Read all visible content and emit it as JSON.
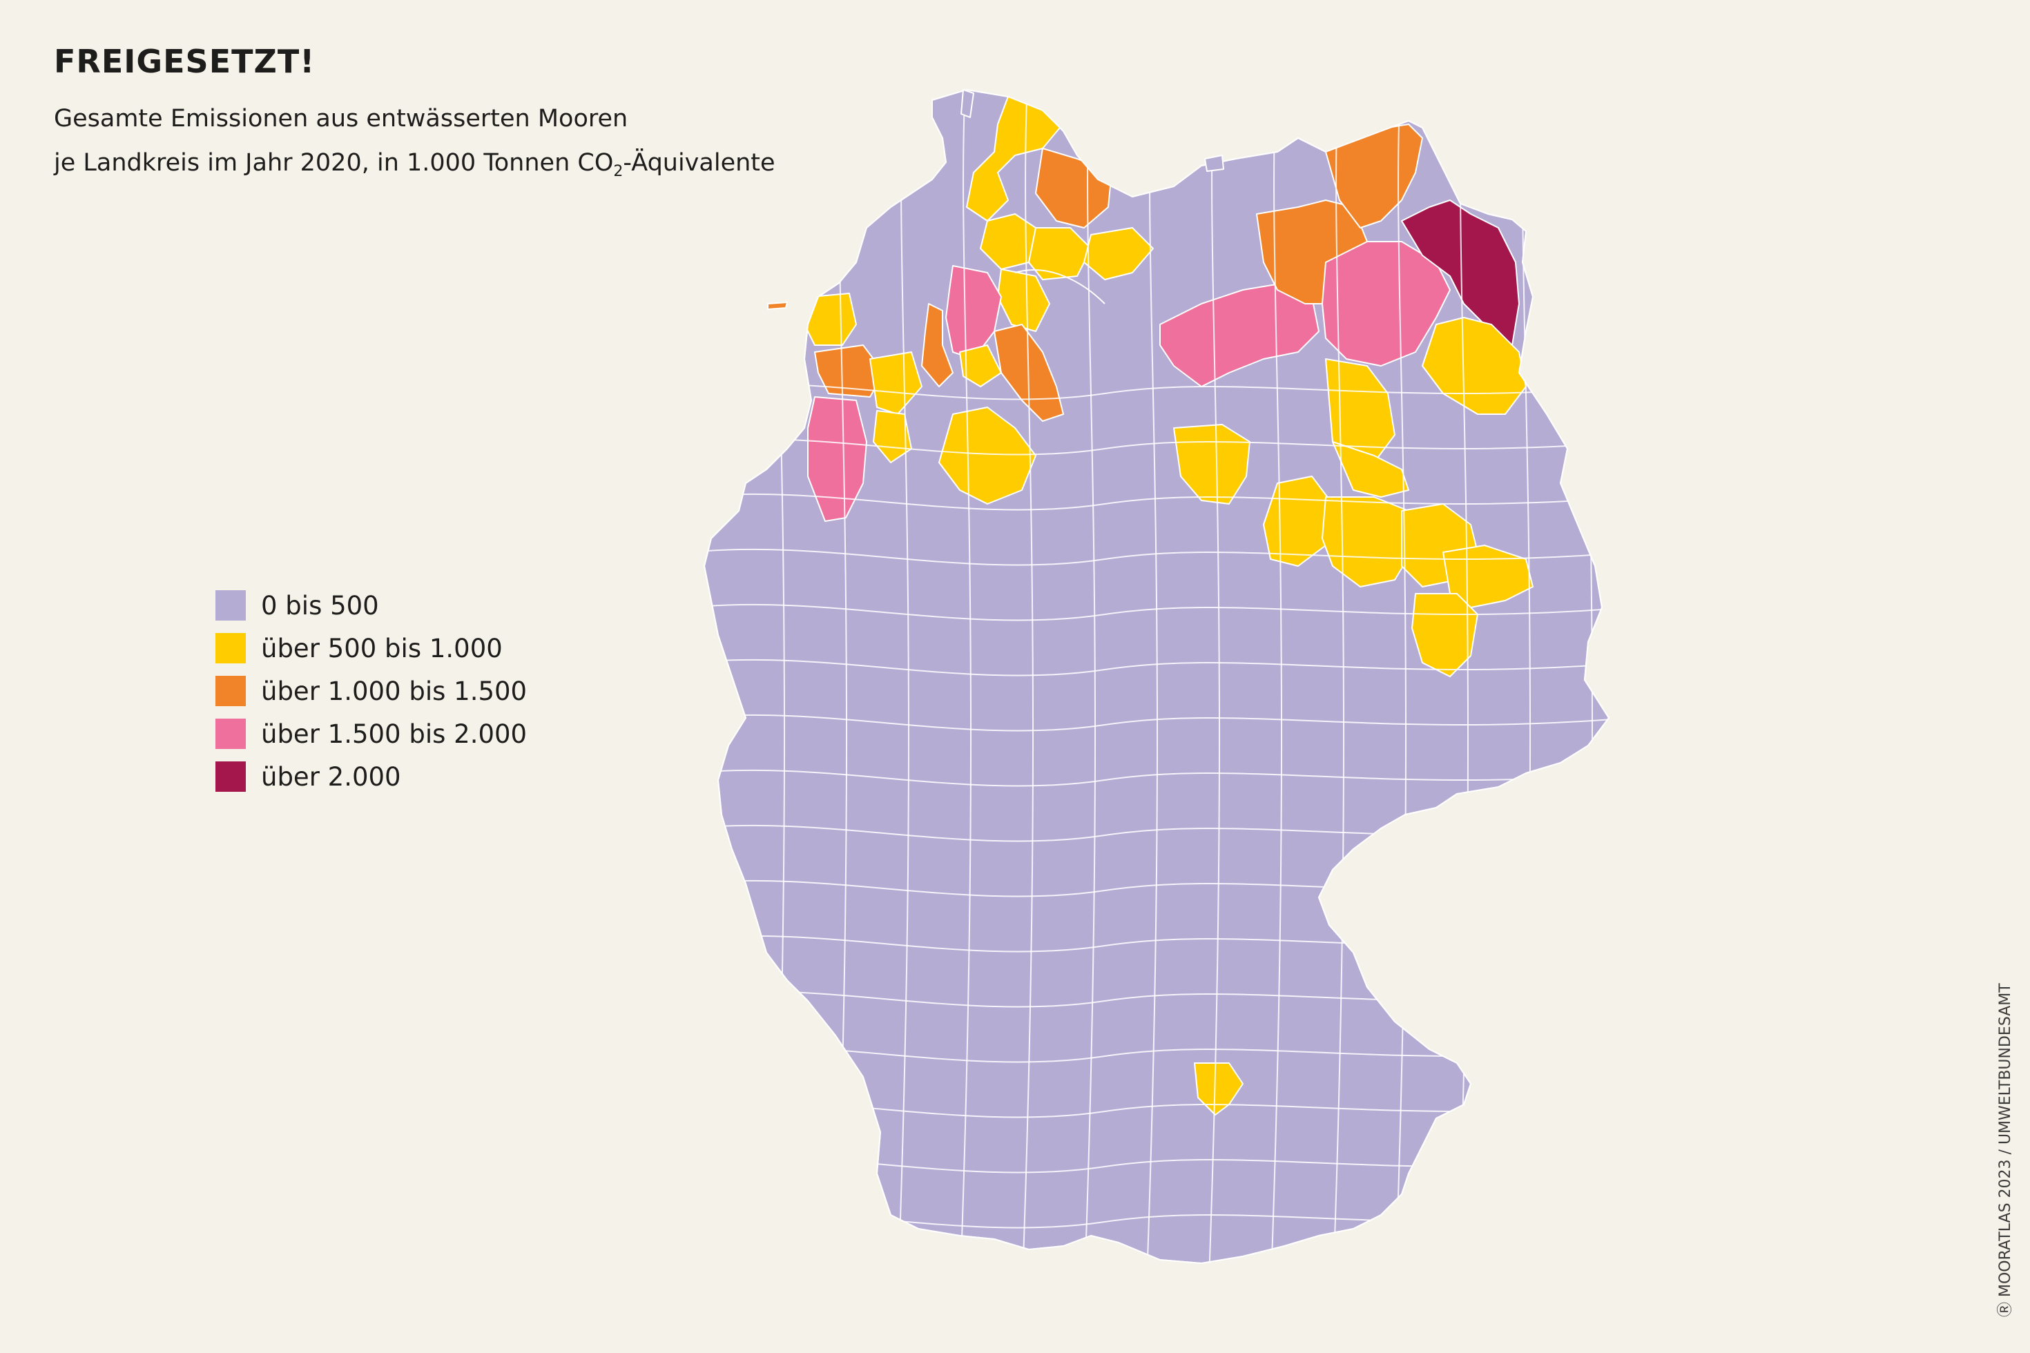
{
  "title": "FREIGESETZT!",
  "subtitle": {
    "line1": "Gesamte Emissionen aus entwässerten Mooren",
    "line2_pre": "je Landkreis im Jahr 2020, in 1.000 Tonnen CO",
    "line2_sub": "2",
    "line2_post": "-Äquivalente"
  },
  "legend": [
    {
      "label": "0 bis 500",
      "color": "#b5acd4"
    },
    {
      "label": "über 500 bis 1.000",
      "color": "#ffcc00"
    },
    {
      "label": "über 1.000 bis 1.500",
      "color": "#f18429"
    },
    {
      "label": "über 1.500 bis 2.000",
      "color": "#ef709d"
    },
    {
      "label": "über 2.000",
      "color": "#a4174d"
    }
  ],
  "credit": "Ⓡ MOORATLAS 2023 / UMWELTBUNDESAMT"
}
